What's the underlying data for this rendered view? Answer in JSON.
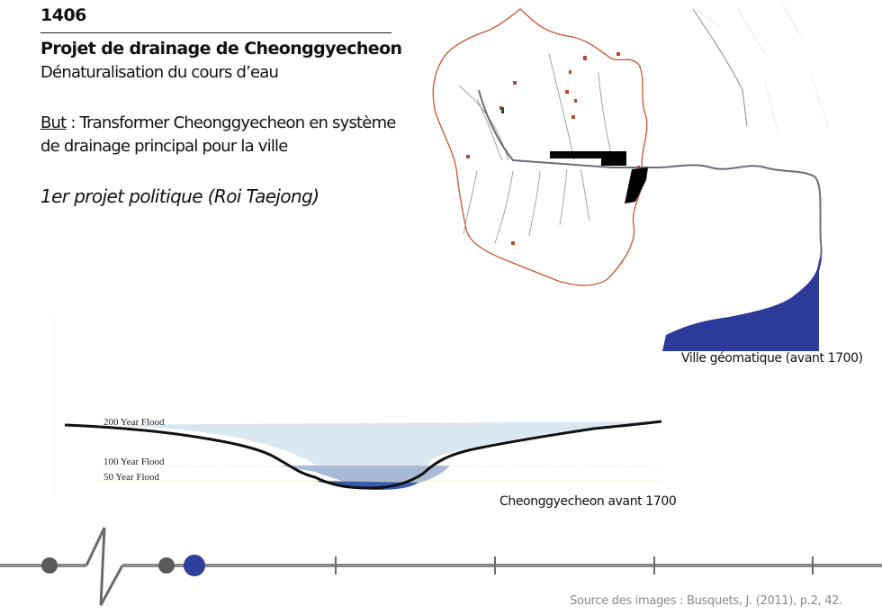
{
  "header": {
    "year": "1406",
    "title": "Projet de drainage de Cheonggyecheon",
    "subtitle": "Dénaturalisation du cours d’eau"
  },
  "goal": {
    "label": "But",
    "text": " : Transformer Cheonggyecheon en système de drainage principal pour la ville"
  },
  "project_note": "1er projet politique (Roi Taejong)",
  "map": {
    "caption": "Ville géomatique (avant 1700)"
  },
  "section": {
    "caption": "Cheonggyecheon avant 1700",
    "flood_levels": [
      "200 Year Flood",
      "100 Year Flood",
      "50 Year Flood"
    ]
  },
  "timeline": {
    "active_color": "#2e3f9a",
    "inactive_color": "#5a5a5a"
  },
  "source": "Source des images : Busquets, J. (2011), p.2, 42.",
  "colors": {
    "wall": "#c8552e",
    "river": "#6a6e78",
    "water": "#2c3a9a",
    "flood_fill": "#cfe0ee"
  }
}
